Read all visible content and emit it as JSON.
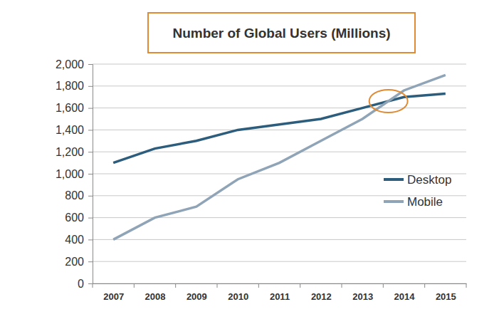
{
  "chart_data": {
    "type": "line",
    "title": "Number of Global Users (Millions)",
    "categories": [
      "2007",
      "2008",
      "2009",
      "2010",
      "2011",
      "2012",
      "2013",
      "2014",
      "2015"
    ],
    "series": [
      {
        "name": "Desktop",
        "color": "#2d5d7c",
        "values": [
          1100,
          1230,
          1300,
          1400,
          1450,
          1500,
          1600,
          1700,
          1730
        ]
      },
      {
        "name": "Mobile",
        "color": "#8fa4b7",
        "values": [
          400,
          600,
          700,
          950,
          1100,
          1300,
          1500,
          1760,
          1900
        ]
      }
    ],
    "ylim": [
      0,
      2000
    ],
    "yticks": [
      0,
      200,
      400,
      600,
      800,
      {
        "value": 1000,
        "label": "1,000"
      },
      {
        "value": 1200,
        "label": "1,200"
      },
      {
        "value": 1400,
        "label": "1,400"
      },
      {
        "value": 1600,
        "label": "1,600"
      },
      {
        "value": 1800,
        "label": "1,800"
      },
      {
        "value": 2000,
        "label": "2,000"
      }
    ],
    "grid": true,
    "legend": "right"
  }
}
